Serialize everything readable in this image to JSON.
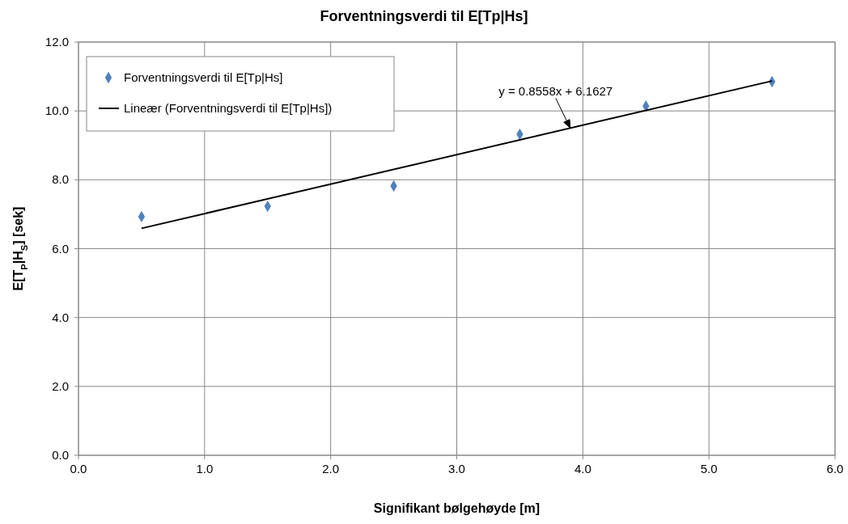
{
  "chart_data": {
    "type": "scatter",
    "title": "Forventningsverdi til E[Tp|Hs]",
    "xlabel": "Signifikant bølgehøyde  [m]",
    "ylabel": "E[T$_{P}$|H$_{S}$]  [sek]",
    "xlim": [
      0,
      6
    ],
    "xticks": [
      {
        "value": 0,
        "label": "0.0"
      },
      {
        "value": 1,
        "label": "1.0"
      },
      {
        "value": 2,
        "label": "2.0"
      },
      {
        "value": 3,
        "label": "3.0"
      },
      {
        "value": 4,
        "label": "4.0"
      },
      {
        "value": 5,
        "label": "5.0"
      },
      {
        "value": 6,
        "label": "6.0"
      }
    ],
    "ylim": [
      0,
      12
    ],
    "yticks": [
      {
        "value": 0,
        "label": "0.0"
      },
      {
        "value": 2,
        "label": "2.0"
      },
      {
        "value": 4,
        "label": "4.0"
      },
      {
        "value": 6,
        "label": "6.0"
      },
      {
        "value": 8,
        "label": "8.0"
      },
      {
        "value": 10,
        "label": "10.0"
      },
      {
        "value": 12,
        "label": "12.0"
      }
    ],
    "grid": true,
    "legend": "top left",
    "series": [
      {
        "name": "Forventningsverdi til E[Tp|Hs]",
        "color": "#4f81bd",
        "marker": "diamond",
        "x": [
          0.5,
          1.5,
          2.5,
          3.5,
          4.5,
          5.5
        ],
        "values": [
          6.93,
          7.23,
          7.82,
          9.32,
          10.14,
          10.85
        ]
      },
      {
        "name": "Lineær (Forventningsverdi til E[Tp|Hs])",
        "type": "line",
        "color": "#000000",
        "x": [
          0.5,
          5.5
        ],
        "values": [
          6.59,
          10.87
        ]
      }
    ],
    "annotations": [
      {
        "text": "y = 0.8558x + 6.1627",
        "x": 3.9,
        "y": 9.5
      }
    ]
  }
}
